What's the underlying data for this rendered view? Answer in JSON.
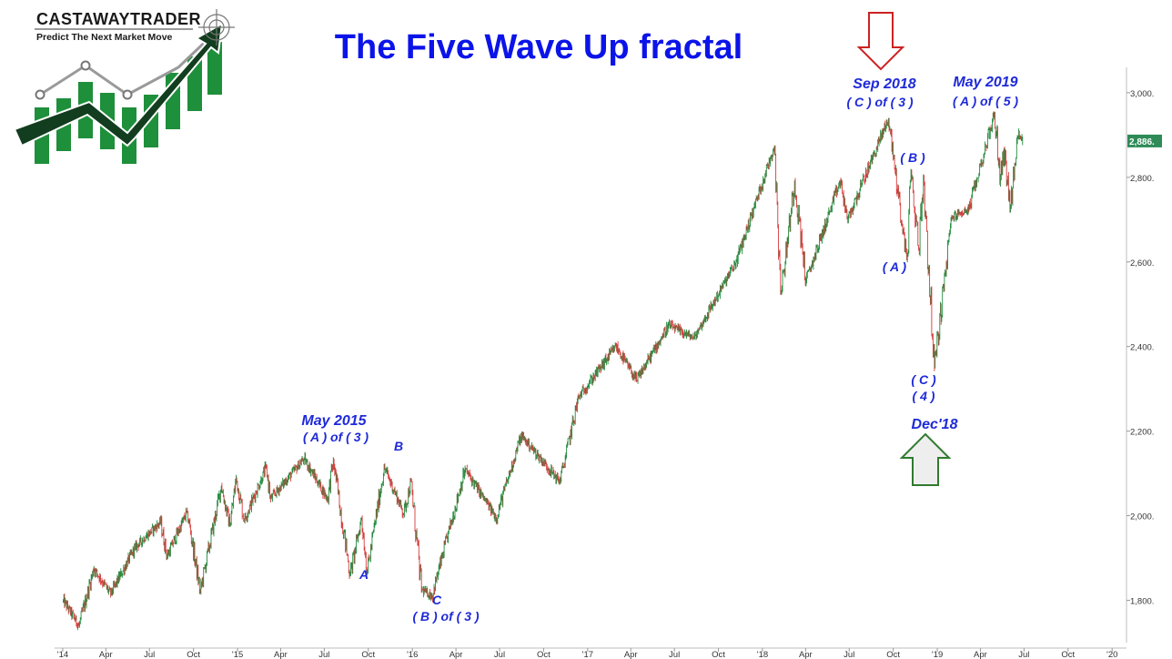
{
  "logo": {
    "name": "CASTAWAYTRADER",
    "tagline": "Predict The Next Market Move"
  },
  "title": "The Five Wave Up fractal",
  "colors": {
    "title": "#0b14e8",
    "annotation": "#1e2ad8",
    "up_bar": "#1f8a3c",
    "down_bar": "#d63a3a",
    "price_tag": "#2e8b57",
    "arrow_down": "#cc2222",
    "arrow_up": "#2f7a2f"
  },
  "arrows": [
    {
      "direction": "down",
      "icon": "down-arrow-icon"
    },
    {
      "direction": "up",
      "icon": "up-arrow-icon"
    }
  ],
  "chart_data": {
    "type": "line",
    "subtype": "ohlc",
    "title": "The Five Wave Up fractal",
    "ylim": [
      1700,
      3060
    ],
    "xlim": [
      "2013-12-15",
      "2020-01-31"
    ],
    "y_ticks": [
      "1,800.",
      "2,000.",
      "2,200.",
      "2,400.",
      "2,600.",
      "2,800.",
      "3,000."
    ],
    "y_tick_values": [
      1800,
      2000,
      2200,
      2400,
      2600,
      2800,
      3000
    ],
    "x_ticks": [
      "'14",
      "Apr",
      "Jul",
      "Oct",
      "'15",
      "Apr",
      "Jul",
      "Oct",
      "'16",
      "Apr",
      "Jul",
      "Oct",
      "'17",
      "Apr",
      "Jul",
      "Oct",
      "'18",
      "Apr",
      "Jul",
      "Oct",
      "'19",
      "Apr",
      "Jul",
      "Oct",
      "'20"
    ],
    "x_tick_dates": [
      "2014-01-01",
      "2014-04-01",
      "2014-07-01",
      "2014-10-01",
      "2015-01-01",
      "2015-04-01",
      "2015-07-01",
      "2015-10-01",
      "2016-01-01",
      "2016-04-01",
      "2016-07-01",
      "2016-10-01",
      "2017-01-01",
      "2017-04-01",
      "2017-07-01",
      "2017-10-01",
      "2018-01-01",
      "2018-04-01",
      "2018-07-01",
      "2018-10-01",
      "2019-01-01",
      "2019-04-01",
      "2019-07-01",
      "2019-10-01",
      "2020-01-01"
    ],
    "last_price_label": "2,886.",
    "last_price": 2886,
    "grid": false,
    "series": [
      {
        "values": [
          [
            "2014-01-02",
            1800
          ],
          [
            "2014-02-04",
            1740
          ],
          [
            "2014-03-07",
            1875
          ],
          [
            "2014-04-11",
            1815
          ],
          [
            "2014-06-01",
            1925
          ],
          [
            "2014-07-24",
            1985
          ],
          [
            "2014-08-07",
            1905
          ],
          [
            "2014-09-18",
            2010
          ],
          [
            "2014-10-15",
            1820
          ],
          [
            "2014-11-28",
            2070
          ],
          [
            "2014-12-16",
            1975
          ],
          [
            "2014-12-29",
            2090
          ],
          [
            "2015-01-15",
            1990
          ],
          [
            "2015-03-02",
            2115
          ],
          [
            "2015-03-11",
            2040
          ],
          [
            "2015-05-20",
            2135
          ],
          [
            "2015-07-08",
            2040
          ],
          [
            "2015-07-20",
            2130
          ],
          [
            "2015-08-24",
            1860
          ],
          [
            "2015-09-17",
            1995
          ],
          [
            "2015-09-29",
            1870
          ],
          [
            "2015-11-03",
            2115
          ],
          [
            "2015-12-14",
            2005
          ],
          [
            "2015-12-29",
            2080
          ],
          [
            "2016-01-20",
            1825
          ],
          [
            "2016-02-11",
            1810
          ],
          [
            "2016-04-20",
            2110
          ],
          [
            "2016-06-24",
            1995
          ],
          [
            "2016-08-15",
            2190
          ],
          [
            "2016-11-04",
            2080
          ],
          [
            "2016-12-13",
            2280
          ],
          [
            "2017-03-01",
            2400
          ],
          [
            "2017-04-13",
            2320
          ],
          [
            "2017-06-19",
            2450
          ],
          [
            "2017-08-11",
            2420
          ],
          [
            "2017-11-07",
            2600
          ],
          [
            "2018-01-26",
            2875
          ],
          [
            "2018-02-09",
            2530
          ],
          [
            "2018-03-09",
            2790
          ],
          [
            "2018-04-02",
            2555
          ],
          [
            "2018-06-12",
            2790
          ],
          [
            "2018-06-28",
            2700
          ],
          [
            "2018-09-21",
            2940
          ],
          [
            "2018-10-29",
            2605
          ],
          [
            "2018-11-07",
            2815
          ],
          [
            "2018-11-23",
            2630
          ],
          [
            "2018-12-03",
            2800
          ],
          [
            "2018-12-26",
            2350
          ],
          [
            "2019-01-31",
            2705
          ],
          [
            "2019-03-08",
            2725
          ],
          [
            "2019-04-30",
            2950
          ],
          [
            "2019-05-13",
            2800
          ],
          [
            "2019-05-20",
            2865
          ],
          [
            "2019-06-03",
            2730
          ],
          [
            "2019-06-20",
            2910
          ],
          [
            "2019-06-28",
            2886
          ]
        ]
      }
    ],
    "annotations": [
      {
        "lines": [
          "May 2015",
          "( A ) of ( 3 )"
        ]
      },
      {
        "lines": [
          "A"
        ]
      },
      {
        "lines": [
          "B"
        ]
      },
      {
        "lines": [
          "C",
          "( B ) of ( 3 )"
        ]
      },
      {
        "lines": [
          "Sep 2018",
          "( C ) of ( 3 )"
        ]
      },
      {
        "lines": [
          "( B )"
        ]
      },
      {
        "lines": [
          "( A )"
        ]
      },
      {
        "lines": [
          "( C )",
          "( 4 )"
        ]
      },
      {
        "lines": [
          "Dec'18"
        ]
      },
      {
        "lines": [
          "May 2019",
          "( A ) of ( 5 )"
        ]
      }
    ]
  }
}
